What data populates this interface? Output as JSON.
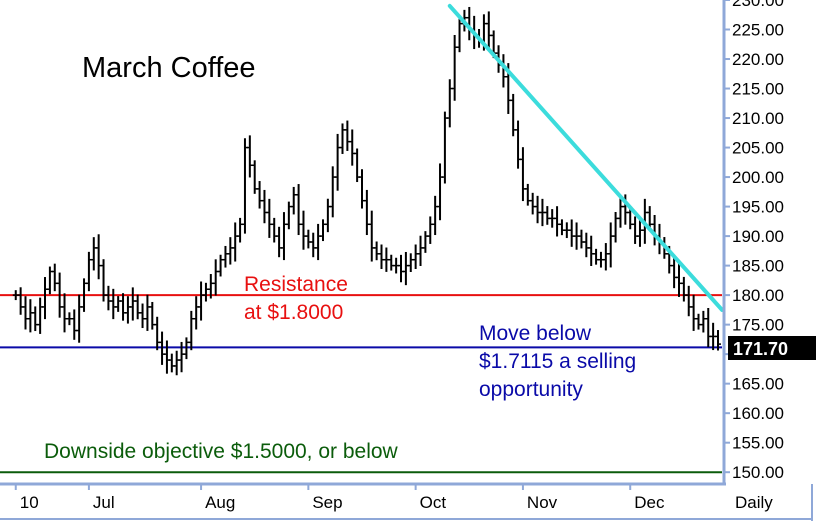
{
  "chart_data": {
    "type": "ohlc",
    "title": "March Coffee",
    "frequency_label": "Daily",
    "last_price_label": "171.70",
    "ylim": [
      148,
      230
    ],
    "y_ticks": [
      "150.00",
      "155.00",
      "160.00",
      "165.00",
      "170.00",
      "175.00",
      "180.00",
      "185.00",
      "190.00",
      "195.00",
      "200.00",
      "205.00",
      "210.00",
      "215.00",
      "220.00",
      "225.00",
      "230.00"
    ],
    "y_tick_values": [
      150,
      155,
      160,
      165,
      170,
      175,
      180,
      185,
      190,
      195,
      200,
      205,
      210,
      215,
      220,
      225,
      230
    ],
    "x_ticks": [
      "10",
      "Jul",
      "Aug",
      "Sep",
      "Oct",
      "Nov",
      "Dec"
    ],
    "x_tick_positions": [
      0,
      15,
      38,
      60,
      82,
      104,
      126
    ],
    "x_range": [
      -2,
      144
    ],
    "closes": [
      180,
      178,
      176,
      177,
      175,
      178,
      181,
      184,
      182,
      178,
      176,
      176,
      174,
      178,
      182,
      186,
      188,
      185,
      180,
      179,
      178,
      179,
      177,
      178,
      179,
      177,
      176,
      178,
      175,
      172,
      170,
      169,
      168,
      169,
      170,
      172,
      176,
      178,
      180,
      181,
      182,
      184,
      186,
      187,
      188,
      190,
      192,
      205,
      202,
      198,
      196,
      194,
      192,
      190,
      188,
      192,
      195,
      197,
      192,
      190,
      189,
      188,
      190,
      192,
      195,
      200,
      205,
      208,
      206,
      204,
      200,
      196,
      192,
      188,
      187,
      186,
      186,
      185,
      185,
      184,
      185,
      186,
      187,
      188,
      190,
      192,
      195,
      200,
      210,
      215,
      222,
      226,
      227,
      225,
      224,
      223,
      226,
      224,
      221,
      219,
      217,
      213,
      208,
      203,
      198,
      196,
      195,
      194,
      194,
      193,
      193,
      192,
      191,
      191,
      190,
      190,
      189,
      188,
      187,
      186,
      186,
      187,
      190,
      193,
      195,
      194,
      192,
      190,
      191,
      194,
      192,
      190,
      189,
      187,
      185,
      183,
      182,
      180,
      178,
      176,
      175,
      176,
      173,
      173,
      171.7
    ],
    "horizontal_lines": [
      {
        "value": 180.0,
        "color": "#e81010"
      },
      {
        "value": 171.15,
        "color": "#0a0aa8"
      },
      {
        "value": 150.0,
        "color": "#0b5c0b"
      }
    ],
    "trendline": {
      "from": [
        89,
        229
      ],
      "to": [
        146,
        177.5
      ],
      "color": "#3cdcdc"
    },
    "annotations": {
      "resistance_line1": "Resistance",
      "resistance_line2": "at $1.8000",
      "move_line1": "Move below",
      "move_line2": "$1.7115 a selling",
      "move_line3": "opportunity",
      "downside": "Downside objective $1.5000, or below"
    },
    "colors": {
      "bars": "#000000",
      "axis": "#8fa8d8",
      "resistance": "#e81010",
      "selling": "#0a0aa8",
      "objective": "#0b5c0b",
      "trendline": "#3cdcdc",
      "last_price_bg": "#000000",
      "last_price_text": "#ffffff"
    }
  }
}
